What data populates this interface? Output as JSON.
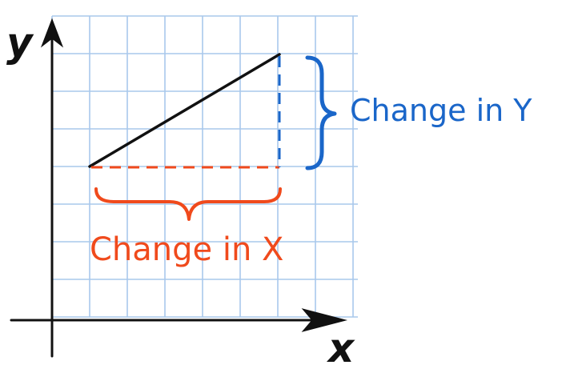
{
  "axes": {
    "x_label": "x",
    "y_label": "y"
  },
  "annotations": {
    "change_in_x": "Change in X",
    "change_in_y": "Change in Y"
  },
  "colors": {
    "grid": "#a9c8ec",
    "axis": "#111111",
    "line": "#111111",
    "change_x": "#f04a1c",
    "change_y": "#1a66c9"
  }
}
